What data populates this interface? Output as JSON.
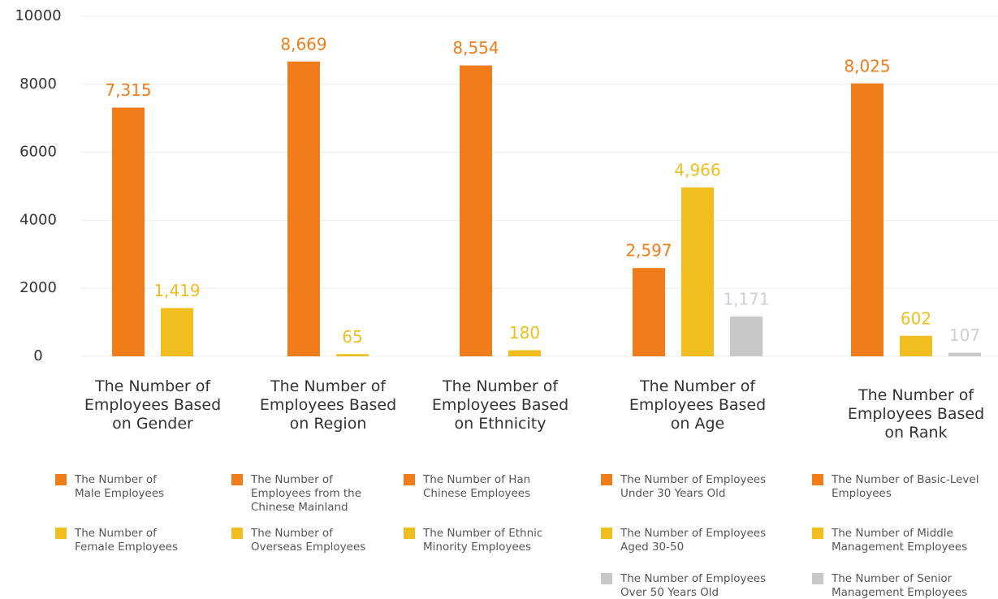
{
  "chart_data": {
    "type": "grouped-bar",
    "ylim": [
      0,
      10000
    ],
    "yticks": [
      0,
      2000,
      4000,
      6000,
      8000,
      10000
    ],
    "grid": true,
    "groups": [
      {
        "category": "The Number of Employees Based on Gender",
        "bars": [
          {
            "name": "The Number of Male Employees",
            "color": "#f07c1a",
            "value": 7315,
            "value_label": "7,315"
          },
          {
            "name": "The Number of Female Employees",
            "color": "#f0be1e",
            "value": 1419,
            "value_label": "1,419"
          }
        ]
      },
      {
        "category": "The Number of Employees Based on Region",
        "bars": [
          {
            "name": "The Number of Employees from the Chinese Mainland",
            "color": "#f07c1a",
            "value": 8669,
            "value_label": "8,669"
          },
          {
            "name": "The Number of Overseas Employees",
            "color": "#f0be1e",
            "value": 65
          }
        ]
      },
      {
        "category": "The Number of Employees Based on Ethnicity",
        "bars": [
          {
            "name": "The Number of Han Chinese Employees",
            "color": "#f07c1a",
            "value": 8554,
            "value_label": "8,554"
          },
          {
            "name": "The Number of Ethnic Minority Employees",
            "color": "#f0be1e",
            "value": 180
          }
        ]
      },
      {
        "category": "The Number of Employees Based on Age",
        "bars": [
          {
            "name": "The Number of Employees Under 30 Years Old",
            "color": "#f07c1a",
            "value": 2597,
            "value_label": "2,597"
          },
          {
            "name": "The Number of Employees Aged 30-50",
            "color": "#f0be1e",
            "value": 4966,
            "value_label": "4,966"
          },
          {
            "name": "The Number of Employees Over 50 Years Old",
            "color": "#c8c8c8",
            "value": 1171,
            "value_label": "1,171"
          }
        ]
      },
      {
        "category": "The Number of Employees Based on Rank",
        "bars": [
          {
            "name": "The Number of Basic-Level Employees",
            "color": "#f07c1a",
            "value": 8025,
            "value_label": "8,025"
          },
          {
            "name": "The Number of Middle Management Employees",
            "color": "#f0be1e",
            "value": 602
          },
          {
            "name": "The Number of Senior Management Employees",
            "color": "#c8c8c8",
            "value": 107
          }
        ]
      }
    ]
  }
}
